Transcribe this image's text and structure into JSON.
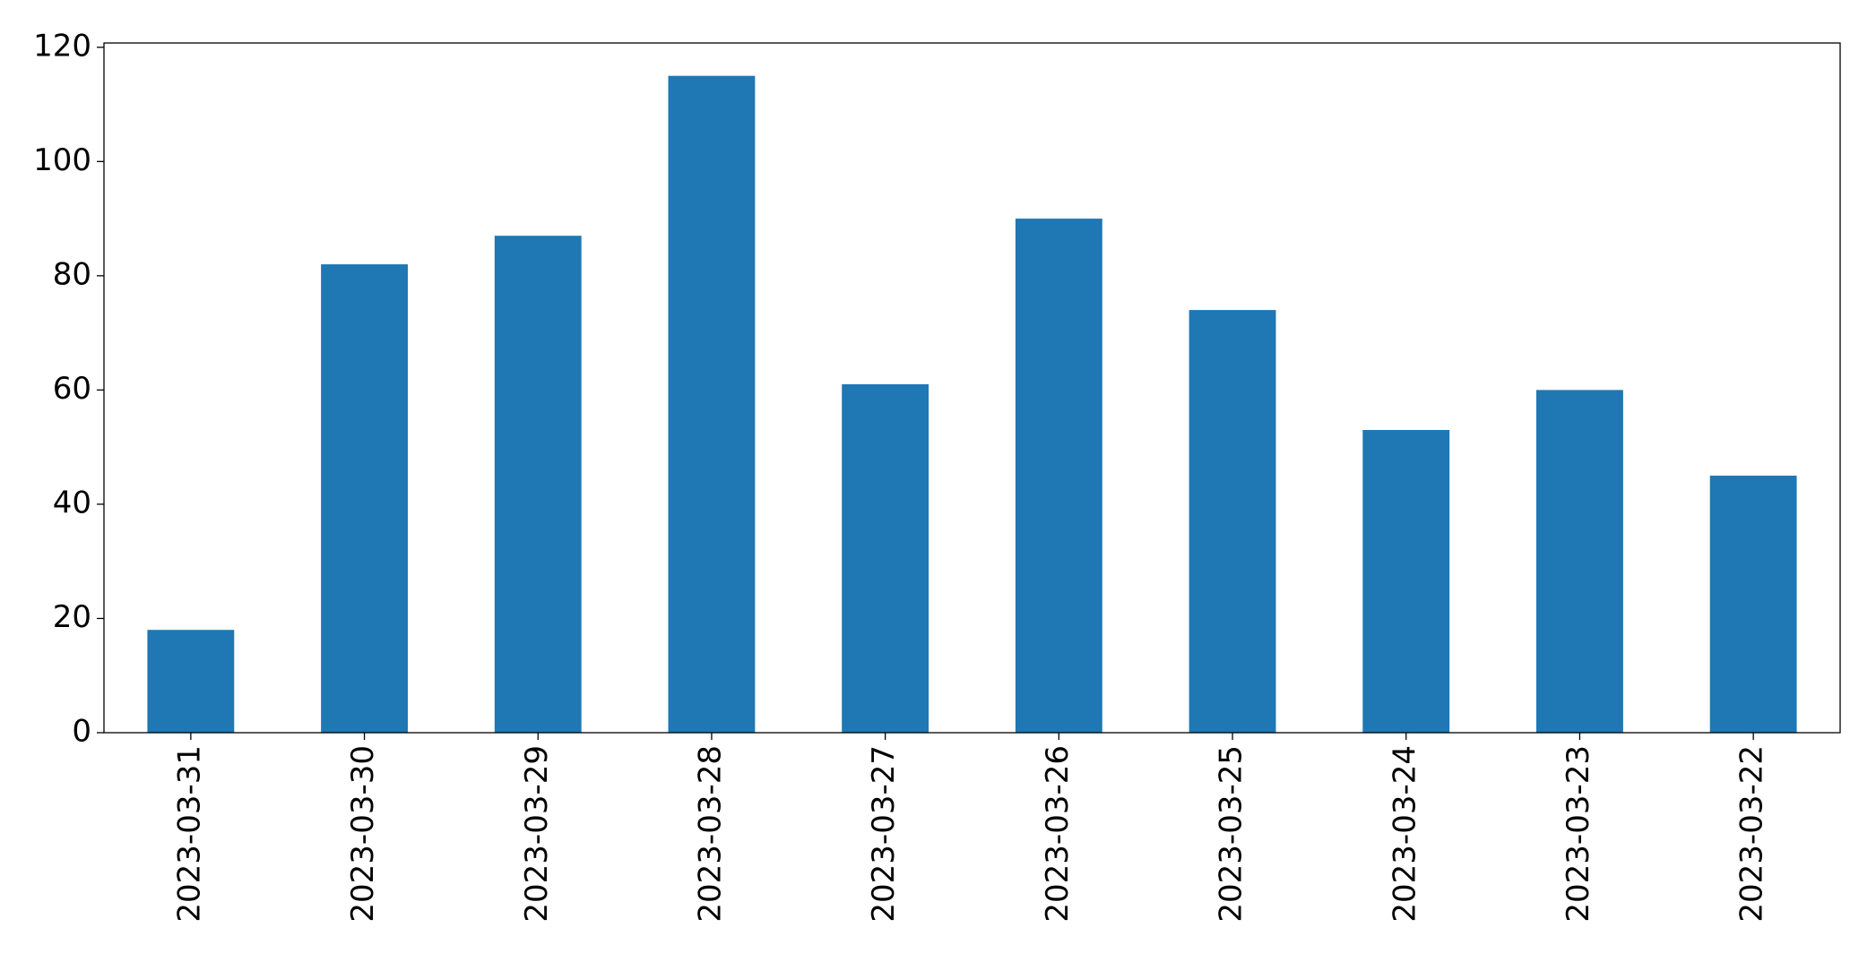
{
  "chart_data": {
    "type": "bar",
    "categories": [
      "2023-03-31",
      "2023-03-30",
      "2023-03-29",
      "2023-03-28",
      "2023-03-27",
      "2023-03-26",
      "2023-03-25",
      "2023-03-24",
      "2023-03-23",
      "2023-03-22"
    ],
    "values": [
      18,
      82,
      87,
      115,
      61,
      90,
      74,
      53,
      60,
      45
    ],
    "color": "#1f77b4",
    "ylim": [
      0,
      120.75
    ],
    "yticks": [
      0,
      20,
      40,
      60,
      80,
      100,
      120
    ],
    "grid": false
  }
}
